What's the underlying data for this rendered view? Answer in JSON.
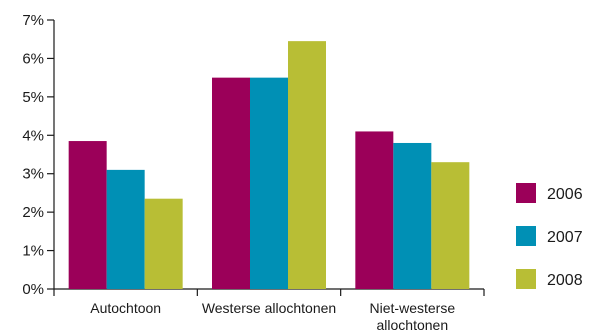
{
  "chart_data": {
    "type": "bar",
    "categories": [
      [
        "Autochtoon"
      ],
      [
        "Westerse allochtonen"
      ],
      [
        "Niet-westerse",
        "allochtonen"
      ]
    ],
    "series": [
      {
        "name": "2006",
        "color": "#9b0059",
        "values": [
          3.85,
          5.5,
          4.1
        ]
      },
      {
        "name": "2007",
        "color": "#0090b5",
        "values": [
          3.1,
          5.5,
          3.8
        ]
      },
      {
        "name": "2008",
        "color": "#b8be35",
        "values": [
          2.35,
          6.45,
          3.3
        ]
      }
    ],
    "y_ticks": [
      "0%",
      "1%",
      "2%",
      "3%",
      "4%",
      "5%",
      "6%",
      "7%"
    ],
    "ylim": [
      0,
      7
    ],
    "title": "",
    "xlabel": "",
    "ylabel": "",
    "grid": false,
    "legend_position": "right"
  }
}
